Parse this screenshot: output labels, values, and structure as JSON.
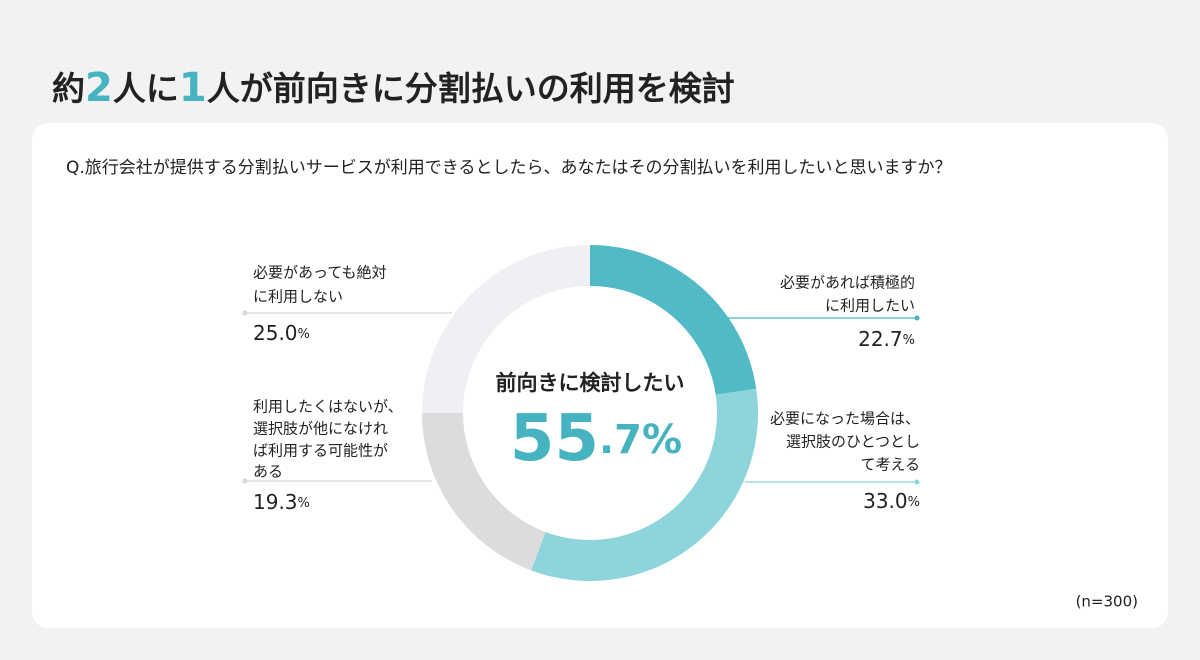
{
  "chart_data": {
    "type": "donut",
    "title": [
      "約",
      "2",
      "人に",
      "1",
      "人",
      "が前向きに分割払いの利用を検討"
    ],
    "question": "Q.旅行会社が提供する分割払いサービスが利用できるとしたら、あなたはその分割払いを利用したいと思いますか？",
    "center_label": "前向きに検討したい",
    "center_value": 55.7,
    "center_value_label": "55.7%",
    "categories": [
      [
        "必要があれば積極的",
        "に利用したい"
      ],
      [
        "必要になった場合は、",
        "選択肢のひとつとし",
        "て考える"
      ],
      [
        "利用したくはないが、",
        "選択肢が他になけれ",
        "ば利用する可能性が",
        "ある"
      ],
      [
        "必要があっても絶対",
        "に利用しない"
      ]
    ],
    "values": [
      22.7,
      33.0,
      19.3,
      25.0
    ],
    "value_labels": [
      "22.7%",
      "33.0%",
      "19.3%",
      "25.0%"
    ],
    "colors": [
      "#52bac6",
      "#8dd4db",
      "#dcdcdf",
      "#f0eff3"
    ],
    "note": "(n=300)"
  }
}
